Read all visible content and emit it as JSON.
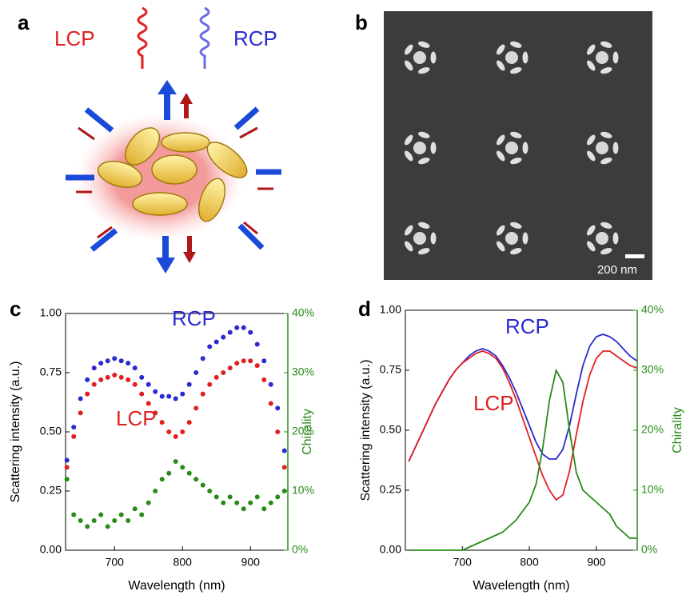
{
  "panel_a": {
    "label": "a",
    "lcp": "LCP",
    "rcp": "RCP"
  },
  "panel_b": {
    "label": "b",
    "scale_bar": "200 nm"
  },
  "chart_data": [
    {
      "type": "scatter",
      "panel_label": "c",
      "x_label": "Wavelength (nm)",
      "y_label": "Scattering intensity (a.u.)",
      "y2_label": "Chirality",
      "x": [
        630,
        640,
        650,
        660,
        670,
        680,
        690,
        700,
        710,
        720,
        730,
        740,
        750,
        760,
        770,
        780,
        790,
        800,
        810,
        820,
        830,
        840,
        850,
        860,
        870,
        880,
        890,
        900,
        910,
        920,
        930,
        940,
        950
      ],
      "series": [
        {
          "name": "RCP",
          "color": "#2a2ad0",
          "values": [
            0.38,
            0.52,
            0.64,
            0.72,
            0.77,
            0.79,
            0.8,
            0.81,
            0.8,
            0.79,
            0.77,
            0.73,
            0.7,
            0.67,
            0.65,
            0.65,
            0.64,
            0.66,
            0.7,
            0.75,
            0.81,
            0.86,
            0.88,
            0.9,
            0.92,
            0.94,
            0.94,
            0.92,
            0.87,
            0.8,
            0.7,
            0.6,
            0.42
          ]
        },
        {
          "name": "LCP",
          "color": "#e02020",
          "values": [
            0.35,
            0.48,
            0.58,
            0.66,
            0.7,
            0.72,
            0.73,
            0.74,
            0.73,
            0.72,
            0.7,
            0.66,
            0.62,
            0.58,
            0.54,
            0.5,
            0.48,
            0.5,
            0.54,
            0.6,
            0.66,
            0.7,
            0.73,
            0.75,
            0.77,
            0.79,
            0.8,
            0.8,
            0.78,
            0.72,
            0.62,
            0.5,
            0.35
          ]
        },
        {
          "name": "Chirality",
          "color": "#2a8a1a",
          "axis": "y2",
          "values": [
            12,
            6,
            5,
            4,
            5,
            6,
            4,
            5,
            6,
            5,
            7,
            6,
            8,
            10,
            12,
            13,
            15,
            14,
            13,
            12,
            11,
            10,
            9,
            8,
            9,
            8,
            7,
            8,
            9,
            7,
            8,
            9,
            10
          ]
        }
      ],
      "annotations": [
        {
          "text": "RCP",
          "color": "#2a2ad0"
        },
        {
          "text": "LCP",
          "color": "#e02020"
        }
      ],
      "xlim": [
        628,
        955
      ],
      "xticks": [
        700,
        800,
        900
      ],
      "ylim": [
        0,
        1
      ],
      "yticks": [
        {
          "value": 0,
          "label": "0.00"
        },
        {
          "value": 0.25,
          "label": "0.25"
        },
        {
          "value": 0.5,
          "label": "0.50"
        },
        {
          "value": 0.75,
          "label": "0.75"
        },
        {
          "value": 1,
          "label": "1.00"
        }
      ],
      "y2lim": [
        0,
        40
      ],
      "y2ticks": [
        {
          "value": 0,
          "label": "0%"
        },
        {
          "value": 10,
          "label": "10%"
        },
        {
          "value": 20,
          "label": "20%"
        },
        {
          "value": 30,
          "label": "30%"
        },
        {
          "value": 40,
          "label": "40%"
        }
      ],
      "y2_color": "#2a8a1a"
    },
    {
      "type": "line",
      "panel_label": "d",
      "x_label": "Wavelength (nm)",
      "y_label": "Scattering intensity (a.u.)",
      "y2_label": "Chirality",
      "x": [
        620,
        630,
        640,
        650,
        660,
        670,
        680,
        690,
        700,
        710,
        720,
        730,
        740,
        750,
        760,
        770,
        780,
        790,
        800,
        810,
        820,
        830,
        840,
        850,
        860,
        870,
        880,
        890,
        900,
        910,
        920,
        930,
        940,
        950,
        960
      ],
      "series": [
        {
          "name": "RCP",
          "color": "#2a2ad0",
          "values": [
            0.37,
            0.43,
            0.49,
            0.55,
            0.61,
            0.66,
            0.71,
            0.75,
            0.78,
            0.81,
            0.83,
            0.84,
            0.83,
            0.81,
            0.77,
            0.72,
            0.66,
            0.59,
            0.52,
            0.45,
            0.4,
            0.38,
            0.38,
            0.42,
            0.52,
            0.65,
            0.77,
            0.85,
            0.89,
            0.9,
            0.89,
            0.87,
            0.84,
            0.81,
            0.79
          ]
        },
        {
          "name": "LCP",
          "color": "#e02020",
          "values": [
            0.37,
            0.43,
            0.49,
            0.55,
            0.61,
            0.66,
            0.71,
            0.75,
            0.78,
            0.8,
            0.82,
            0.83,
            0.82,
            0.8,
            0.76,
            0.7,
            0.63,
            0.55,
            0.47,
            0.39,
            0.31,
            0.25,
            0.21,
            0.23,
            0.33,
            0.48,
            0.62,
            0.73,
            0.8,
            0.83,
            0.83,
            0.81,
            0.79,
            0.77,
            0.76
          ]
        },
        {
          "name": "Chirality",
          "color": "#2a8a1a",
          "axis": "y2",
          "values": [
            0,
            0,
            0,
            0,
            0,
            0,
            0,
            0,
            0,
            0.5,
            1,
            1.5,
            2,
            2.5,
            3,
            4,
            5,
            6.5,
            8,
            11,
            17,
            25,
            30,
            28,
            20,
            13,
            10,
            9,
            8,
            7,
            6,
            4,
            3,
            2,
            2
          ]
        }
      ],
      "annotations": [
        {
          "text": "RCP",
          "color": "#2a2ad0"
        },
        {
          "text": "LCP",
          "color": "#e02020"
        }
      ],
      "xlim": [
        615,
        961
      ],
      "xticks": [
        700,
        800,
        900
      ],
      "ylim": [
        0,
        1
      ],
      "yticks": [
        {
          "value": 0,
          "label": "0.00"
        },
        {
          "value": 0.25,
          "label": "0.25"
        },
        {
          "value": 0.5,
          "label": "0.50"
        },
        {
          "value": 0.75,
          "label": "0.75"
        },
        {
          "value": 1,
          "label": "1.00"
        }
      ],
      "y2lim": [
        0,
        40
      ],
      "y2ticks": [
        {
          "value": 0,
          "label": "0%"
        },
        {
          "value": 10,
          "label": "10%"
        },
        {
          "value": 20,
          "label": "20%"
        },
        {
          "value": 30,
          "label": "30%"
        },
        {
          "value": 40,
          "label": "40%"
        }
      ],
      "y2_color": "#2a8a1a"
    }
  ]
}
